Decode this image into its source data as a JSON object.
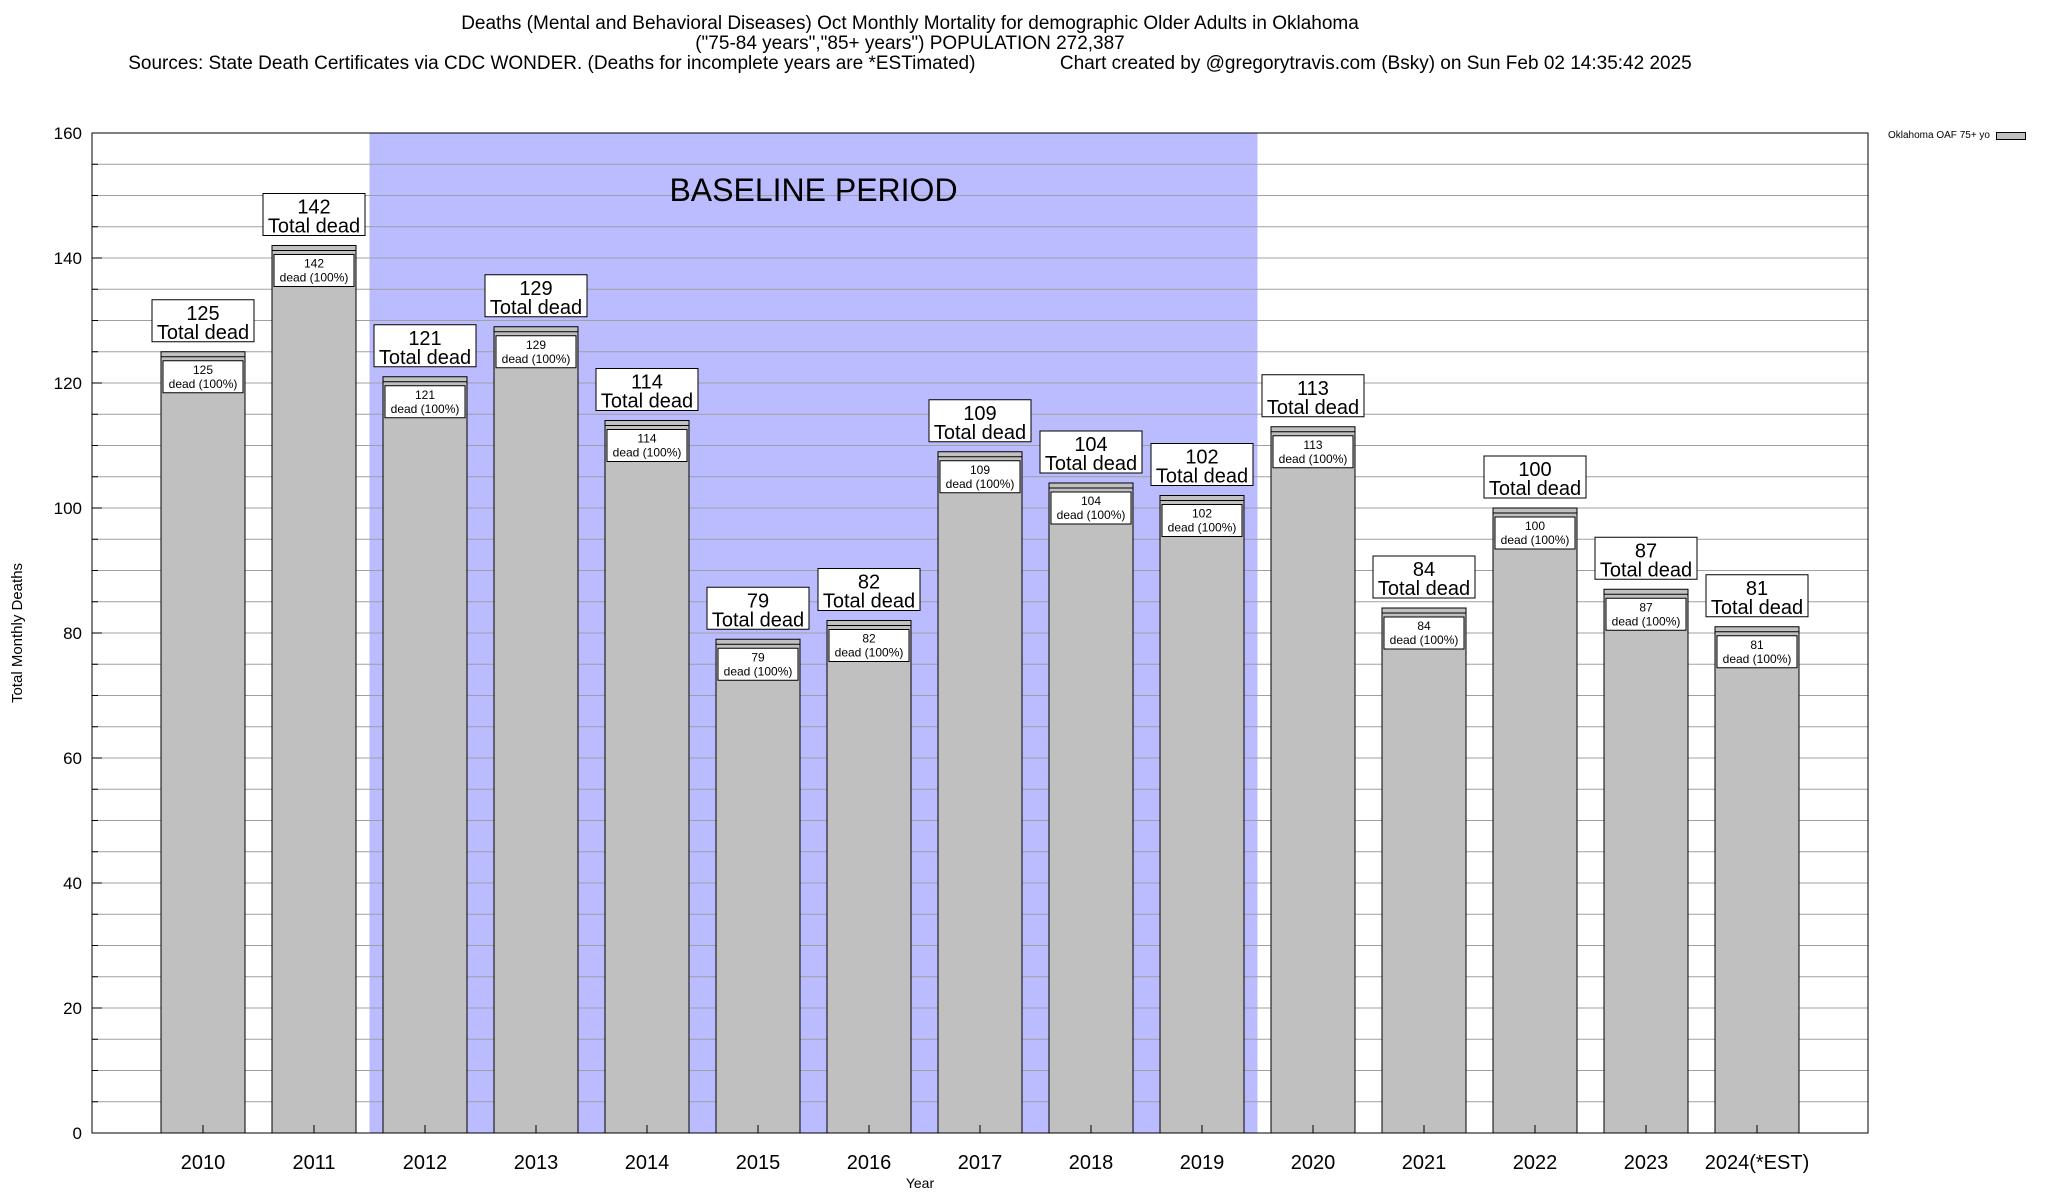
{
  "header": {
    "title_line1": "Deaths (Mental and Behavioral Diseases) Oct Monthly Mortality for demographic Older Adults in Oklahoma",
    "title_line2": "(\"75-84 years\",\"85+ years\") POPULATION 272,387",
    "title_line3": "Sources: State Death Certificates via CDC WONDER. (Deaths for incomplete years are *ESTimated)                Chart created by @gregorytravis.com (Bsky) on Sun Feb 02 14:35:42 2025"
  },
  "legend": {
    "label": "Oklahoma OAF 75+ yo",
    "color": "#c0c0c0"
  },
  "chart_data": {
    "type": "bar",
    "title": "Deaths (Mental and Behavioral Diseases) Oct Monthly Mortality for demographic Older Adults in Oklahoma",
    "xlabel": "Year",
    "ylabel": "Total Monthly Deaths",
    "ylim": [
      0,
      160
    ],
    "yticks": [
      0,
      20,
      40,
      60,
      80,
      100,
      120,
      140,
      160
    ],
    "grid": true,
    "legend_position": "top-right",
    "categories": [
      "2010",
      "2011",
      "2012",
      "2013",
      "2014",
      "2015",
      "2016",
      "2017",
      "2018",
      "2019",
      "2020",
      "2021",
      "2022",
      "2023",
      "2024(*EST)"
    ],
    "series": [
      {
        "name": "Oklahoma OAF 75+ yo",
        "color": "#c0c0c0",
        "values": [
          125,
          142,
          121,
          129,
          114,
          79,
          82,
          109,
          104,
          102,
          113,
          84,
          100,
          87,
          81
        ]
      }
    ],
    "top_label_suffix": "Total dead",
    "inner_label_suffix": "dead (100%)",
    "baseline_region": {
      "label": "BASELINE PERIOD",
      "start": "2012",
      "end": "2019",
      "color": "#bbbbff"
    }
  }
}
